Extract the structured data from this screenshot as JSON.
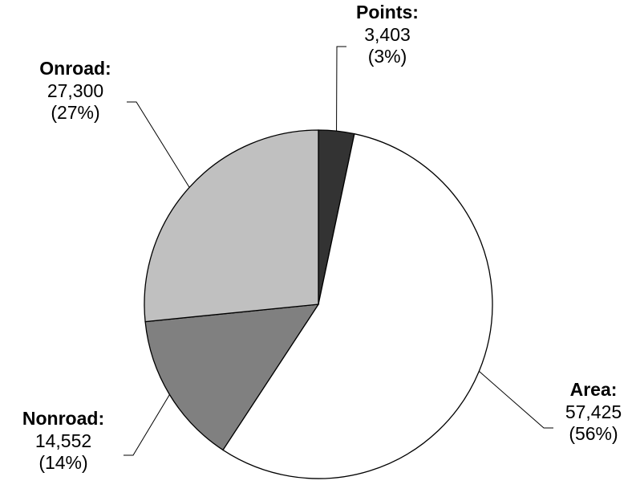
{
  "chart_data": {
    "type": "pie",
    "title": "",
    "slices": [
      {
        "label": "Points:",
        "value": 3403,
        "value_text": "3,403",
        "percent_text": "(3%)",
        "color": "#333333"
      },
      {
        "label": "Area:",
        "value": 57425,
        "value_text": "57,425",
        "percent_text": "(56%)",
        "color": "#ffffff"
      },
      {
        "label": "Nonroad:",
        "value": 14552,
        "value_text": "14,552",
        "percent_text": "(14%)",
        "color": "#808080"
      },
      {
        "label": "Onroad:",
        "value": 27300,
        "value_text": "27,300",
        "percent_text": "(27%)",
        "color": "#c0c0c0"
      }
    ],
    "start_angle": "12 o'clock",
    "direction": "clockwise",
    "slice_border_color": "#000000",
    "legend": "none"
  }
}
